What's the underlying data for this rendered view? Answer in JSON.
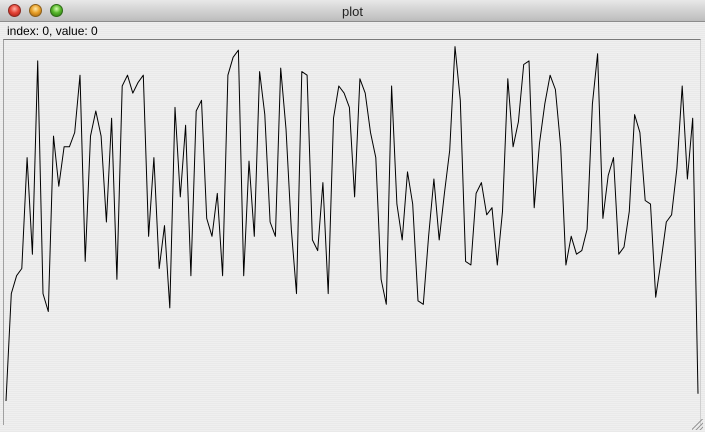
{
  "window": {
    "title": "plot",
    "buttons": {
      "close_icon": "close-icon",
      "minimize_icon": "minimize-icon",
      "zoom_icon": "zoom-icon"
    }
  },
  "status": {
    "text": "index: 0, value: 0"
  },
  "chart_data": {
    "type": "line",
    "title": "",
    "xlabel": "",
    "ylabel": "",
    "grid": false,
    "legend": "none",
    "ylim": [
      0,
      1
    ],
    "series": [
      {
        "color": "#000000",
        "values": [
          0,
          0.3,
          0.35,
          0.37,
          0.68,
          0.41,
          0.95,
          0.3,
          0.25,
          0.74,
          0.6,
          0.71,
          0.71,
          0.75,
          0.91,
          0.39,
          0.74,
          0.81,
          0.74,
          0.5,
          0.79,
          0.34,
          0.88,
          0.91,
          0.86,
          0.89,
          0.91,
          0.46,
          0.68,
          0.37,
          0.49,
          0.26,
          0.82,
          0.57,
          0.77,
          0.35,
          0.81,
          0.84,
          0.51,
          0.46,
          0.58,
          0.35,
          0.91,
          0.96,
          0.98,
          0.35,
          0.67,
          0.46,
          0.92,
          0.8,
          0.5,
          0.46,
          0.93,
          0.76,
          0.48,
          0.3,
          0.92,
          0.91,
          0.45,
          0.42,
          0.61,
          0.3,
          0.79,
          0.88,
          0.86,
          0.82,
          0.57,
          0.9,
          0.86,
          0.75,
          0.68,
          0.34,
          0.27,
          0.88,
          0.55,
          0.45,
          0.64,
          0.55,
          0.28,
          0.27,
          0.46,
          0.62,
          0.45,
          0.58,
          0.7,
          0.99,
          0.84,
          0.39,
          0.38,
          0.58,
          0.61,
          0.52,
          0.54,
          0.38,
          0.53,
          0.9,
          0.71,
          0.78,
          0.94,
          0.95,
          0.54,
          0.72,
          0.83,
          0.91,
          0.87,
          0.71,
          0.38,
          0.46,
          0.41,
          0.42,
          0.48,
          0.83,
          0.97,
          0.51,
          0.63,
          0.68,
          0.41,
          0.43,
          0.53,
          0.8,
          0.75,
          0.56,
          0.55,
          0.29,
          0.39,
          0.5,
          0.52,
          0.65,
          0.88,
          0.62,
          0.79,
          0.02
        ]
      }
    ]
  }
}
